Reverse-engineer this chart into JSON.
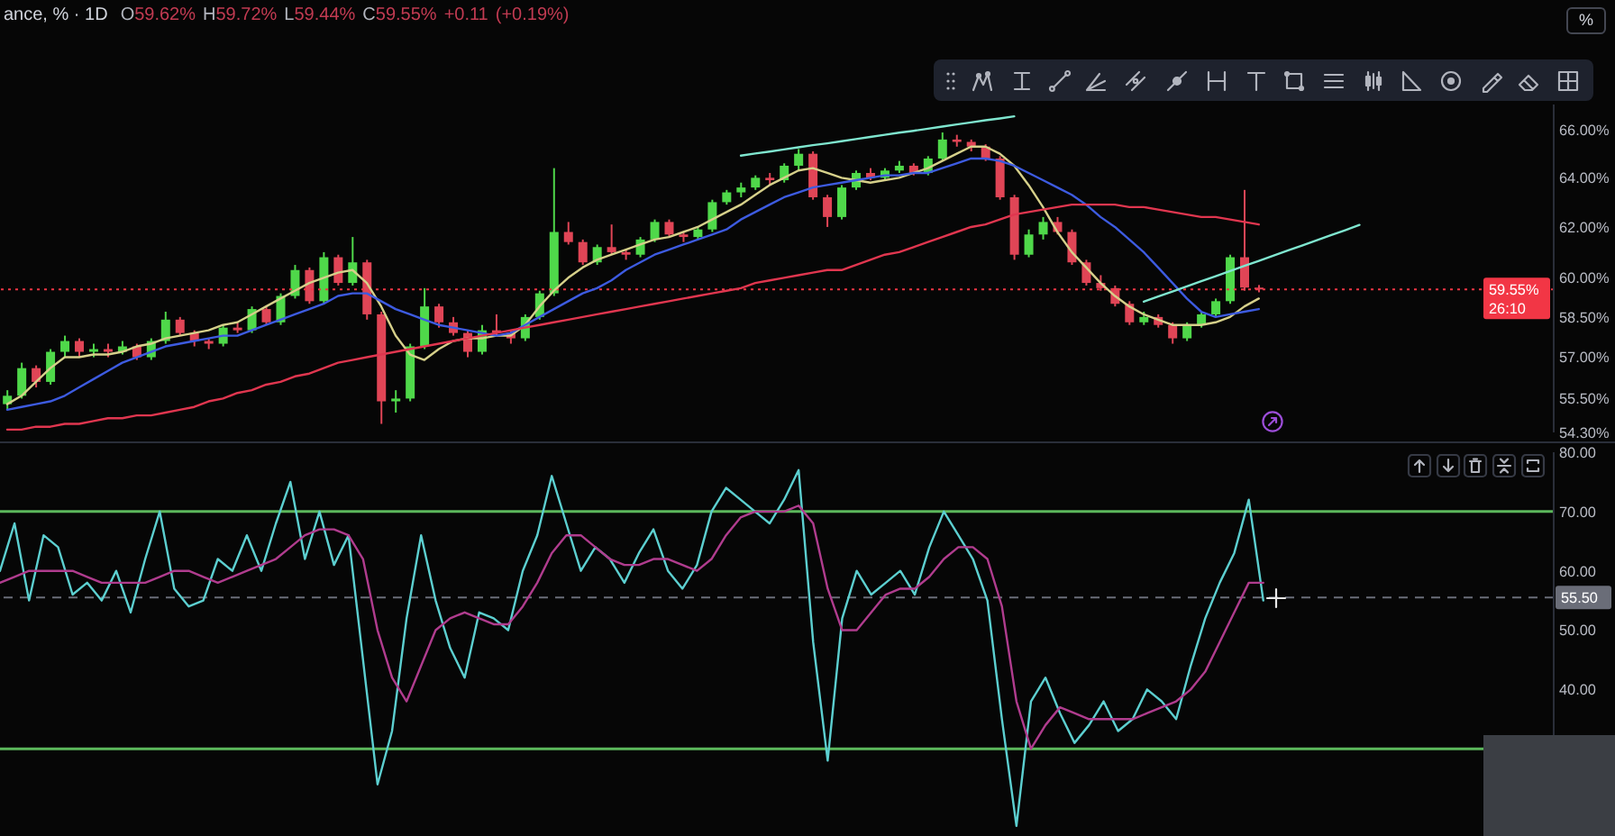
{
  "chart_data": [
    {
      "type": "candlestick",
      "title": "ance, % · 1D",
      "subtitle": "O59.62% H59.72% L59.44% C59.55% +0.11 (+0.19%)",
      "categories": [
        null,
        null,
        null,
        null,
        null,
        null,
        null,
        null,
        null,
        null,
        null,
        null,
        null,
        null,
        null,
        null,
        null,
        null,
        null,
        null,
        null,
        null,
        null,
        null,
        null,
        null,
        null,
        null,
        null,
        null,
        null,
        null,
        null,
        null,
        null,
        null,
        null,
        null,
        null,
        null,
        null,
        null,
        null,
        null,
        null,
        null,
        null,
        null,
        null,
        null,
        null,
        null,
        null,
        null,
        null,
        null,
        null,
        null,
        null,
        null,
        null,
        null,
        null,
        null,
        null,
        null,
        null,
        null,
        null,
        null,
        null,
        null,
        null,
        null,
        null,
        null,
        null,
        null,
        null,
        null,
        null,
        null,
        null,
        null,
        null,
        null,
        null,
        null,
        null,
        null,
        null,
        null,
        null,
        null,
        null,
        null,
        null,
        null,
        null,
        null,
        null,
        null,
        null,
        null,
        null,
        null,
        null,
        null
      ],
      "ohlc": [
        [
          55.3,
          55.8,
          55.1,
          55.6
        ],
        [
          55.6,
          56.8,
          55.5,
          56.6
        ],
        [
          56.6,
          56.7,
          55.9,
          56.1
        ],
        [
          56.1,
          57.3,
          56.0,
          57.2
        ],
        [
          57.2,
          57.8,
          57.0,
          57.6
        ],
        [
          57.6,
          57.7,
          57.0,
          57.2
        ],
        [
          57.2,
          57.5,
          57.0,
          57.3
        ],
        [
          57.3,
          57.5,
          57.0,
          57.2
        ],
        [
          57.2,
          57.6,
          57.1,
          57.4
        ],
        [
          57.4,
          57.5,
          56.9,
          57.0
        ],
        [
          57.0,
          57.7,
          56.9,
          57.6
        ],
        [
          57.6,
          58.7,
          57.5,
          58.4
        ],
        [
          58.4,
          58.5,
          57.8,
          57.9
        ],
        [
          57.9,
          58.0,
          57.4,
          57.6
        ],
        [
          57.6,
          57.7,
          57.3,
          57.5
        ],
        [
          57.5,
          58.2,
          57.4,
          58.1
        ],
        [
          58.1,
          58.3,
          57.9,
          58.0
        ],
        [
          58.0,
          58.9,
          57.9,
          58.8
        ],
        [
          58.8,
          58.9,
          58.2,
          58.3
        ],
        [
          58.3,
          59.4,
          58.2,
          59.3
        ],
        [
          59.3,
          60.5,
          59.2,
          60.3
        ],
        [
          60.3,
          60.4,
          59.0,
          59.1
        ],
        [
          59.1,
          61.0,
          59.0,
          60.8
        ],
        [
          60.8,
          60.9,
          59.7,
          59.8
        ],
        [
          59.8,
          61.6,
          59.7,
          60.6
        ],
        [
          60.6,
          60.7,
          58.4,
          58.6
        ],
        [
          58.6,
          58.7,
          54.6,
          55.4
        ],
        [
          55.4,
          55.8,
          55.0,
          55.5
        ],
        [
          55.5,
          57.5,
          55.4,
          57.4
        ],
        [
          57.4,
          59.6,
          57.3,
          58.9
        ],
        [
          58.9,
          59.0,
          58.1,
          58.3
        ],
        [
          58.3,
          58.5,
          57.8,
          57.9
        ],
        [
          57.9,
          58.0,
          57.0,
          57.2
        ],
        [
          57.2,
          58.2,
          57.1,
          58.0
        ],
        [
          58.0,
          58.6,
          57.8,
          57.9
        ],
        [
          57.9,
          58.0,
          57.5,
          57.7
        ],
        [
          57.7,
          58.6,
          57.6,
          58.5
        ],
        [
          58.5,
          59.5,
          58.4,
          59.4
        ],
        [
          59.4,
          64.4,
          59.3,
          61.8
        ],
        [
          61.8,
          62.2,
          61.3,
          61.4
        ],
        [
          61.4,
          61.5,
          60.5,
          60.6
        ],
        [
          60.6,
          61.3,
          60.5,
          61.2
        ],
        [
          61.2,
          62.1,
          60.9,
          61.0
        ],
        [
          61.0,
          61.1,
          60.7,
          60.9
        ],
        [
          60.9,
          61.6,
          60.8,
          61.5
        ],
        [
          61.5,
          62.3,
          61.4,
          62.2
        ],
        [
          62.2,
          62.3,
          61.6,
          61.7
        ],
        [
          61.7,
          61.8,
          61.4,
          61.6
        ],
        [
          61.6,
          62.0,
          61.5,
          61.9
        ],
        [
          61.9,
          63.1,
          61.8,
          63.0
        ],
        [
          63.0,
          63.5,
          62.9,
          63.4
        ],
        [
          63.4,
          63.8,
          63.2,
          63.6
        ],
        [
          63.6,
          64.1,
          63.5,
          64.0
        ],
        [
          64.0,
          64.2,
          63.7,
          63.9
        ],
        [
          63.9,
          64.6,
          63.8,
          64.5
        ],
        [
          64.5,
          65.2,
          64.3,
          65.0
        ],
        [
          65.0,
          65.1,
          63.1,
          63.2
        ],
        [
          63.2,
          63.3,
          62.0,
          62.4
        ],
        [
          62.4,
          63.7,
          62.3,
          63.6
        ],
        [
          63.6,
          64.3,
          63.5,
          64.2
        ],
        [
          64.2,
          64.4,
          63.9,
          64.0
        ],
        [
          64.0,
          64.4,
          63.9,
          64.3
        ],
        [
          64.3,
          64.7,
          64.2,
          64.5
        ],
        [
          64.5,
          64.6,
          64.1,
          64.2
        ],
        [
          64.2,
          64.9,
          64.1,
          64.8
        ],
        [
          64.8,
          65.9,
          64.7,
          65.6
        ],
        [
          65.6,
          65.8,
          65.3,
          65.5
        ],
        [
          65.5,
          65.6,
          65.1,
          65.3
        ],
        [
          65.3,
          65.4,
          64.7,
          64.8
        ],
        [
          64.8,
          64.9,
          63.1,
          63.2
        ],
        [
          63.2,
          63.3,
          60.7,
          60.9
        ],
        [
          60.9,
          61.9,
          60.8,
          61.7
        ],
        [
          61.7,
          62.4,
          61.5,
          62.2
        ],
        [
          62.2,
          62.4,
          61.7,
          61.8
        ],
        [
          61.8,
          61.9,
          60.5,
          60.6
        ],
        [
          60.6,
          60.7,
          59.7,
          59.8
        ],
        [
          59.8,
          60.1,
          59.5,
          59.6
        ],
        [
          59.6,
          59.7,
          58.9,
          59.0
        ],
        [
          59.0,
          59.1,
          58.2,
          58.3
        ],
        [
          58.3,
          58.7,
          58.2,
          58.5
        ],
        [
          58.5,
          58.6,
          58.1,
          58.2
        ],
        [
          58.2,
          58.3,
          57.5,
          57.7
        ],
        [
          57.7,
          58.3,
          57.6,
          58.2
        ],
        [
          58.2,
          58.7,
          58.1,
          58.6
        ],
        [
          58.6,
          59.2,
          58.5,
          59.1
        ],
        [
          59.1,
          60.9,
          59.0,
          60.8
        ],
        [
          60.8,
          63.5,
          59.5,
          59.62
        ],
        [
          59.62,
          59.72,
          59.44,
          59.55
        ],
        null,
        null,
        null,
        null,
        null,
        null,
        null,
        null,
        null,
        null,
        null,
        null,
        null,
        null,
        null,
        null,
        null,
        null,
        null,
        null
      ],
      "colors": [
        "#4fd84a",
        "#4fd84a",
        "#e04556",
        "#4fd84a",
        "#4fd84a",
        "#e04556",
        "#4fd84a",
        "#e04556",
        "#4fd84a",
        "#e04556",
        "#4fd84a",
        "#4fd84a",
        "#e04556",
        "#e04556",
        "#e04556",
        "#4fd84a",
        "#e04556",
        "#4fd84a",
        "#e04556",
        "#4fd84a",
        "#4fd84a",
        "#e04556",
        "#4fd84a",
        "#e04556",
        "#4fd84a",
        "#e04556",
        "#e04556",
        "#4fd84a",
        "#4fd84a",
        "#4fd84a",
        "#e04556",
        "#e04556",
        "#e04556",
        "#4fd84a",
        "#e04556",
        "#e04556",
        "#4fd84a",
        "#4fd84a",
        "#4fd84a",
        "#e04556",
        "#e04556",
        "#4fd84a",
        "#e04556",
        "#e04556",
        "#4fd84a",
        "#4fd84a",
        "#e04556",
        "#e04556",
        "#4fd84a",
        "#4fd84a",
        "#4fd84a",
        "#4fd84a",
        "#4fd84a",
        "#e04556",
        "#4fd84a",
        "#4fd84a",
        "#e04556",
        "#e04556",
        "#4fd84a",
        "#4fd84a",
        "#e04556",
        "#4fd84a",
        "#4fd84a",
        "#e04556",
        "#4fd84a",
        "#4fd84a",
        "#e04556",
        "#e04556",
        "#e04556",
        "#e04556",
        "#e04556",
        "#4fd84a",
        "#4fd84a",
        "#e04556",
        "#e04556",
        "#e04556",
        "#e04556",
        "#e04556",
        "#e04556",
        "#4fd84a",
        "#e04556",
        "#e04556",
        "#4fd84a",
        "#4fd84a",
        "#4fd84a",
        "#4fd84a",
        "#e04556",
        "#e04556",
        null,
        null,
        null,
        null,
        null,
        null,
        null,
        null,
        null,
        null,
        null,
        null,
        null,
        null,
        null,
        null,
        null,
        null,
        null,
        null
      ],
      "series": [
        {
          "type": "line",
          "color": "#d6d08a",
          "values": [
            55.3,
            55.6,
            56.1,
            56.6,
            57.0,
            57.0,
            57.1,
            57.1,
            57.2,
            57.4,
            57.5,
            57.7,
            57.8,
            57.9,
            58.0,
            58.2,
            58.3,
            58.6,
            58.9,
            59.2,
            59.5,
            59.8,
            60.0,
            60.2,
            60.3,
            59.8,
            58.9,
            57.8,
            57.1,
            56.9,
            57.3,
            57.6,
            57.7,
            57.7,
            57.8,
            57.8,
            58.2,
            58.9,
            59.5,
            60.0,
            60.4,
            60.7,
            60.9,
            61.1,
            61.3,
            61.5,
            61.6,
            61.8,
            62.0,
            62.3,
            62.6,
            62.9,
            63.3,
            63.7,
            64.0,
            64.3,
            64.4,
            64.2,
            64.0,
            63.9,
            63.8,
            63.9,
            64.0,
            64.2,
            64.4,
            64.7,
            65.0,
            65.3,
            65.3,
            65.0,
            64.5,
            63.7,
            62.8,
            61.8,
            61.0,
            60.4,
            59.8,
            59.3,
            58.9,
            58.6,
            58.4,
            58.2,
            58.2,
            58.2,
            58.3,
            58.5,
            58.9,
            59.2,
            null,
            null,
            null,
            null,
            null,
            null,
            null,
            null,
            null,
            null,
            null,
            null,
            null,
            null,
            null,
            null,
            null,
            null,
            null,
            null
          ]
        },
        {
          "type": "line",
          "color": "#3d5be0",
          "values": [
            55.1,
            55.2,
            55.3,
            55.4,
            55.6,
            55.9,
            56.2,
            56.5,
            56.8,
            57.0,
            57.2,
            57.4,
            57.5,
            57.6,
            57.7,
            57.8,
            57.8,
            58.0,
            58.2,
            58.4,
            58.6,
            58.8,
            59.0,
            59.3,
            59.4,
            59.4,
            59.1,
            58.8,
            58.6,
            58.4,
            58.2,
            58.1,
            58.0,
            57.9,
            57.8,
            57.9,
            58.2,
            58.5,
            58.8,
            59.1,
            59.4,
            59.6,
            59.9,
            60.3,
            60.6,
            60.9,
            61.1,
            61.3,
            61.5,
            61.7,
            61.9,
            62.3,
            62.6,
            62.9,
            63.2,
            63.4,
            63.6,
            63.7,
            63.8,
            63.9,
            64.0,
            64.1,
            64.1,
            64.2,
            64.2,
            64.4,
            64.6,
            64.8,
            64.8,
            64.7,
            64.5,
            64.2,
            63.9,
            63.6,
            63.3,
            62.9,
            62.4,
            62.0,
            61.5,
            61.0,
            60.4,
            59.8,
            59.2,
            58.7,
            58.5,
            58.6,
            58.7,
            58.8,
            null,
            null,
            null,
            null,
            null,
            null,
            null,
            null,
            null,
            null,
            null,
            null,
            null,
            null,
            null,
            null,
            null,
            null,
            null,
            null
          ]
        },
        {
          "type": "line",
          "color": "#e0364f",
          "values": [
            54.4,
            54.4,
            54.5,
            54.5,
            54.6,
            54.6,
            54.7,
            54.8,
            54.8,
            54.9,
            54.9,
            55.0,
            55.1,
            55.2,
            55.4,
            55.5,
            55.7,
            55.8,
            56.0,
            56.1,
            56.3,
            56.4,
            56.6,
            56.8,
            56.9,
            57.0,
            57.1,
            57.2,
            57.3,
            57.4,
            57.5,
            57.6,
            57.7,
            57.8,
            57.9,
            58.0,
            58.1,
            58.2,
            58.3,
            58.4,
            58.5,
            58.6,
            58.7,
            58.8,
            58.9,
            59.0,
            59.1,
            59.2,
            59.3,
            59.4,
            59.5,
            59.6,
            59.8,
            59.9,
            60.0,
            60.1,
            60.2,
            60.3,
            60.3,
            60.5,
            60.7,
            60.9,
            61.0,
            61.2,
            61.4,
            61.6,
            61.8,
            62.0,
            62.1,
            62.3,
            62.5,
            62.6,
            62.7,
            62.8,
            62.9,
            62.9,
            62.9,
            62.9,
            62.8,
            62.8,
            62.7,
            62.6,
            62.5,
            62.4,
            62.4,
            62.3,
            62.2,
            62.1,
            null,
            null,
            null,
            null,
            null,
            null,
            null,
            null,
            null,
            null,
            null,
            null,
            null,
            null,
            null,
            null,
            null,
            null,
            null,
            null
          ]
        },
        {
          "type": "line",
          "color": "#7fe6cf",
          "values": [
            null,
            null,
            null,
            null,
            null,
            null,
            null,
            null,
            null,
            null,
            null,
            null,
            null,
            null,
            null,
            null,
            null,
            null,
            null,
            null,
            null,
            null,
            null,
            null,
            null,
            null,
            null,
            null,
            null,
            null,
            null,
            null,
            null,
            null,
            null,
            null,
            null,
            null,
            null,
            null,
            null,
            null,
            null,
            null,
            null,
            null,
            null,
            null,
            null,
            null,
            null,
            64.92,
            65.01,
            65.09,
            65.18,
            65.27,
            65.36,
            65.44,
            65.53,
            65.62,
            65.71,
            65.8,
            65.89,
            65.97,
            66.06,
            66.15,
            66.24,
            66.33,
            66.42,
            66.5,
            66.59,
            null,
            null,
            null,
            null,
            null,
            null,
            null,
            null,
            null,
            null,
            null,
            null,
            null,
            null,
            null,
            null,
            null,
            null,
            null,
            null,
            null,
            null,
            null,
            null,
            null,
            null,
            null,
            null,
            null,
            null,
            null,
            null,
            null,
            null,
            null,
            null,
            null
          ]
        },
        {
          "type": "line",
          "color": "#7fe6cf",
          "values": [
            null,
            null,
            null,
            null,
            null,
            null,
            null,
            null,
            null,
            null,
            null,
            null,
            null,
            null,
            null,
            null,
            null,
            null,
            null,
            null,
            null,
            null,
            null,
            null,
            null,
            null,
            null,
            null,
            null,
            null,
            null,
            null,
            null,
            null,
            null,
            null,
            null,
            null,
            null,
            null,
            null,
            null,
            null,
            null,
            null,
            null,
            null,
            null,
            null,
            null,
            null,
            null,
            null,
            null,
            null,
            null,
            null,
            null,
            null,
            null,
            null,
            null,
            null,
            null,
            null,
            null,
            null,
            null,
            null,
            null,
            null,
            null,
            null,
            null,
            null,
            null,
            null,
            null,
            null,
            59.08,
            59.28,
            59.47,
            59.67,
            59.87,
            60.06,
            60.26,
            60.46,
            60.66,
            60.86,
            61.06,
            61.26,
            61.46,
            61.67,
            61.87,
            62.08,
            null,
            null,
            null,
            null,
            null,
            null,
            null,
            null,
            null,
            null,
            null,
            null,
            null
          ]
        }
      ],
      "ylim": [
        54.3,
        67.1
      ],
      "yticks": [
        {
          "value": 54.3,
          "label": "54.30%"
        },
        {
          "value": 55.5,
          "label": "55.50%"
        },
        {
          "value": 57,
          "label": "57.00%"
        },
        {
          "value": 58.5,
          "label": "58.50%"
        },
        {
          "value": 60,
          "label": "60.00%"
        },
        {
          "value": 62,
          "label": "62.00%"
        },
        {
          "value": 64,
          "label": "64.00%"
        },
        {
          "value": 66,
          "label": "66.00%"
        }
      ],
      "log": true,
      "tick_labels": "y",
      "ref_lines": [
        {
          "axis": "y",
          "value": 59.55,
          "label": "59.55%",
          "color": "#f23645",
          "line_style": "dotted"
        }
      ],
      "annotations": [
        "26:10",
        "%"
      ]
    },
    {
      "type": "line",
      "categories": [
        null,
        null,
        null,
        null,
        null,
        null,
        null,
        null,
        null,
        null,
        null,
        null,
        null,
        null,
        null,
        null,
        null,
        null,
        null,
        null,
        null,
        null,
        null,
        null,
        null,
        null,
        null,
        null,
        null,
        null,
        null,
        null,
        null,
        null,
        null,
        null,
        null,
        null,
        null,
        null,
        null,
        null,
        null,
        null,
        null,
        null,
        null,
        null,
        null,
        null,
        null,
        null,
        null,
        null,
        null,
        null,
        null,
        null,
        null,
        null,
        null,
        null,
        null,
        null,
        null,
        null,
        null,
        null,
        null,
        null,
        null,
        null,
        null,
        null,
        null,
        null,
        null,
        null,
        null,
        null,
        null,
        null,
        null,
        null,
        null,
        null,
        null,
        null,
        null,
        null,
        null,
        null,
        null,
        null,
        null,
        null,
        null,
        null,
        null,
        null,
        null,
        null,
        null,
        null,
        null,
        null,
        null,
        null
      ],
      "series": [
        {
          "color": "#5ccfd0",
          "values": [
            60,
            68,
            55,
            66,
            64,
            56,
            58,
            55,
            60,
            53,
            62,
            70,
            57,
            54,
            55,
            62,
            60,
            66,
            60,
            68,
            75,
            62,
            70,
            61,
            66,
            45,
            24,
            33,
            52,
            66,
            55,
            47,
            42,
            53,
            52,
            50,
            60,
            66,
            76,
            68,
            60,
            64,
            62,
            58,
            63,
            67,
            60,
            57,
            61,
            70,
            74,
            72,
            70,
            68,
            72,
            77,
            48,
            28,
            52,
            60,
            56,
            58,
            60,
            56,
            64,
            70,
            66,
            62,
            55,
            35,
            17,
            38,
            42,
            36,
            31,
            34,
            38,
            33,
            35,
            40,
            38,
            35,
            44,
            52,
            58,
            63,
            72,
            55,
            null,
            null,
            null,
            null,
            null,
            null,
            null,
            null,
            null,
            null,
            null,
            null,
            null,
            null,
            null,
            null,
            null,
            null,
            null,
            null
          ]
        },
        {
          "color": "#b03c8e",
          "values": [
            58,
            59,
            60,
            60,
            60,
            60,
            59,
            58,
            58,
            58,
            58,
            59,
            60,
            60,
            59,
            58,
            59,
            60,
            61,
            62,
            64,
            66,
            67,
            67,
            66,
            62,
            50,
            42,
            38,
            44,
            50,
            52,
            53,
            52,
            51,
            51,
            54,
            58,
            63,
            66,
            66,
            64,
            62,
            61,
            61,
            62,
            62,
            61,
            60,
            62,
            66,
            69,
            70,
            70,
            70,
            71,
            68,
            57,
            50,
            50,
            53,
            56,
            57,
            57,
            59,
            62,
            64,
            64,
            62,
            54,
            38,
            30,
            34,
            37,
            36,
            35,
            35,
            35,
            35,
            36,
            37,
            38,
            40,
            43,
            48,
            53,
            58,
            58,
            null,
            null,
            null,
            null,
            null,
            null,
            null,
            null,
            null,
            null,
            null,
            null,
            null,
            null,
            null,
            null,
            null,
            null,
            null,
            null
          ]
        }
      ],
      "ylim": [
        15.3,
        80
      ],
      "yticks": [
        {
          "value": 40,
          "label": "40.00"
        },
        {
          "value": 50,
          "label": "50.00"
        },
        {
          "value": 60,
          "label": "60.00"
        },
        {
          "value": 70,
          "label": "70.00"
        },
        {
          "value": 80,
          "label": "80.00"
        }
      ],
      "tick_labels": "y",
      "ref_lines": [
        {
          "axis": "y",
          "value": 70,
          "color": "#5cb85c"
        },
        {
          "axis": "y",
          "value": 30,
          "color": "#5cb85c"
        },
        {
          "axis": "y",
          "value": 55.5,
          "label": "55.50",
          "color": "#6a6d78",
          "line_style": "dashed"
        }
      ]
    }
  ]
}
